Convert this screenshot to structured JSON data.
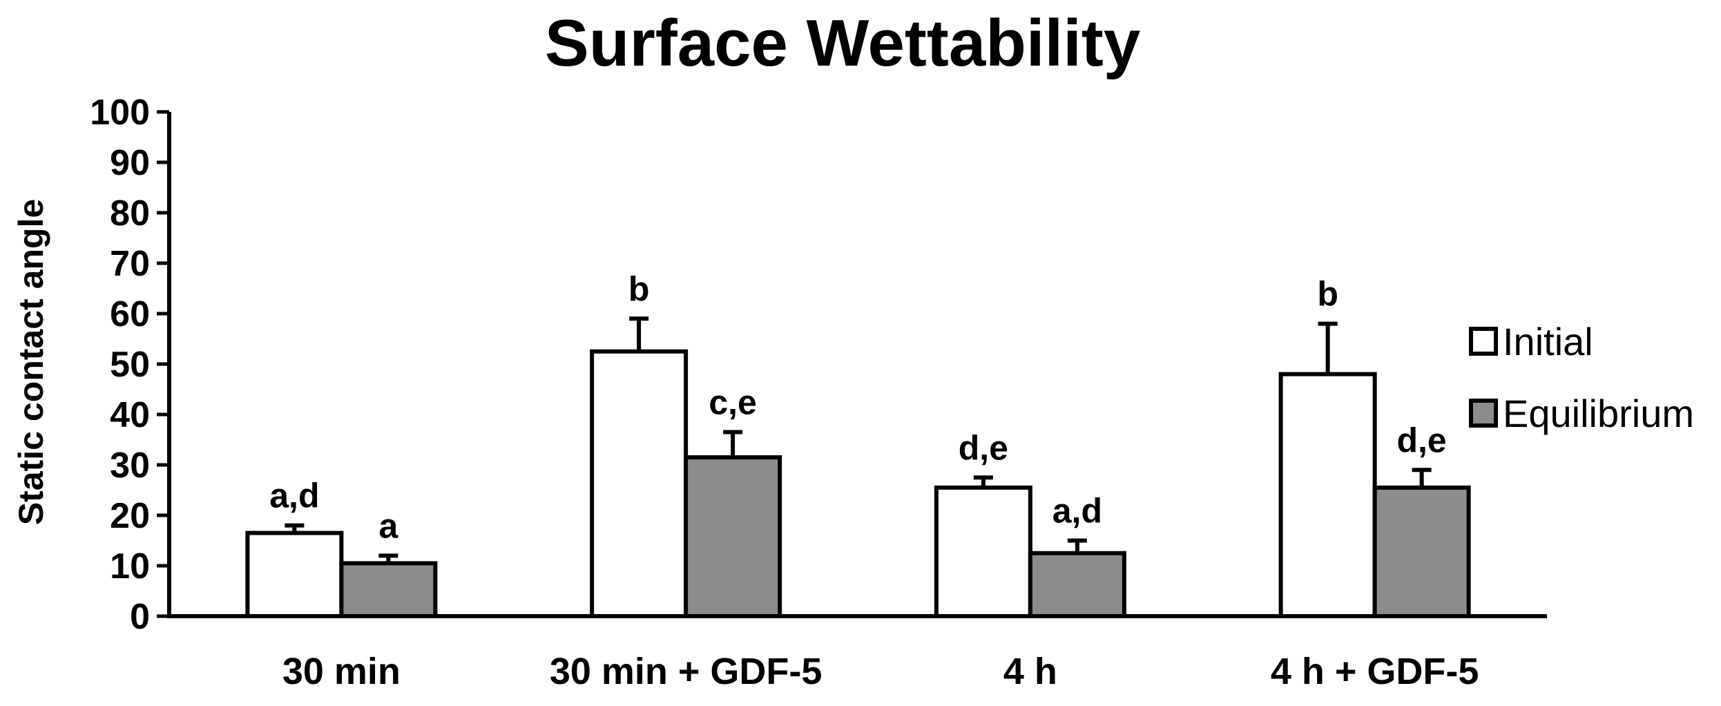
{
  "chart_data": {
    "type": "bar",
    "title": "Surface Wettability",
    "xlabel": "",
    "ylabel": "Static contact angle",
    "ylim": [
      0,
      100
    ],
    "yticks": [
      0,
      10,
      20,
      30,
      40,
      50,
      60,
      70,
      80,
      90,
      100
    ],
    "categories": [
      "30 min",
      "30 min + GDF-5",
      "4 h",
      "4 h + GDF-5"
    ],
    "series": [
      {
        "name": "Initial",
        "color": "#ffffff",
        "values": [
          16.5,
          52.5,
          25.5,
          48
        ],
        "errors": [
          1.5,
          6.5,
          2,
          10
        ],
        "annotations": [
          "a,d",
          "b",
          "d,e",
          "b"
        ]
      },
      {
        "name": "Equilibrium",
        "color": "#8c8c8c",
        "values": [
          10.5,
          31.5,
          12.5,
          25.5
        ],
        "errors": [
          1.5,
          5,
          2.5,
          3.5
        ],
        "annotations": [
          "a",
          "c,e",
          "a,d",
          "d,e"
        ]
      }
    ],
    "legend_position": "right",
    "grid": false
  }
}
